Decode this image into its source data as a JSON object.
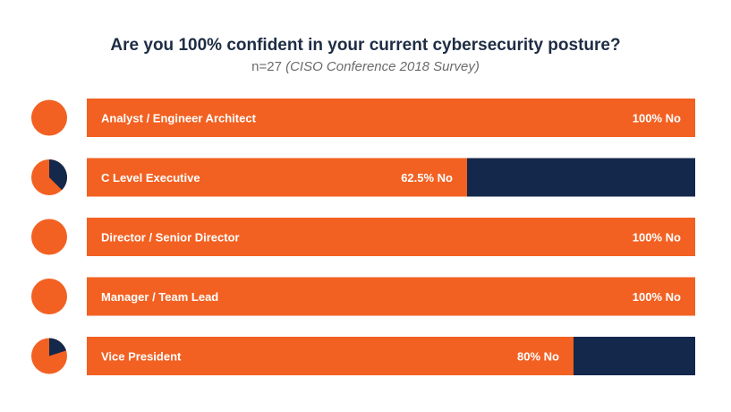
{
  "title": "Are you 100% confident in your current cybersecurity posture?",
  "subtitle": {
    "sample": "n=27",
    "source": "(CISO Conference 2018 Survey)"
  },
  "colors": {
    "no": "#f26122",
    "yes": "#14284b"
  },
  "chart_data": {
    "type": "bar",
    "orientation": "horizontal",
    "stacked": true,
    "ylim": [
      0,
      100
    ],
    "categories": [
      "Analyst / Engineer Architect",
      "C Level Executive",
      "Director / Senior Director",
      "Manager / Team Lead",
      "Vice President"
    ],
    "series": [
      {
        "values": [
          100,
          62.5,
          100,
          100,
          80
        ]
      },
      {
        "values": [
          0,
          37.5,
          0,
          0,
          20
        ]
      }
    ],
    "data_labels": [
      "100% No",
      "62.5% No",
      "100% No",
      "100% No",
      "80% No"
    ]
  }
}
